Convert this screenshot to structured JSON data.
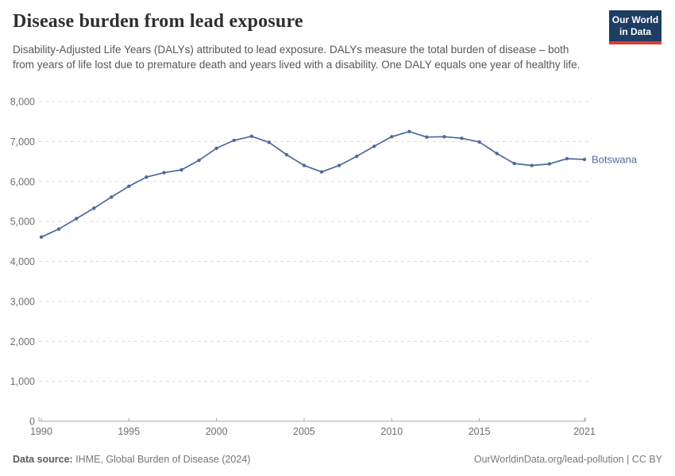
{
  "header": {
    "title": "Disease burden from lead exposure",
    "subtitle": "Disability-Adjusted Life Years (DALYs) attributed to lead exposure. DALYs measure the total burden of disease – both from years of life lost due to premature death and years lived with a disability. One DALY equals one year of healthy life.",
    "logo": {
      "line1": "Our World",
      "line2": "in Data",
      "bg_color": "#1d3d63",
      "accent_color": "#dc3e32"
    }
  },
  "chart_data": {
    "type": "line",
    "title": "Disease burden from lead exposure",
    "xlabel": "",
    "ylabel": "",
    "x": [
      1990,
      1991,
      1992,
      1993,
      1994,
      1995,
      1996,
      1997,
      1998,
      1999,
      2000,
      2001,
      2002,
      2003,
      2004,
      2005,
      2006,
      2007,
      2008,
      2009,
      2010,
      2011,
      2012,
      2013,
      2014,
      2015,
      2016,
      2017,
      2018,
      2019,
      2020,
      2021
    ],
    "series": [
      {
        "name": "Botswana",
        "color": "#4c6a9c",
        "values": [
          4610,
          4810,
          5070,
          5330,
          5610,
          5880,
          6110,
          6220,
          6290,
          6530,
          6830,
          7030,
          7130,
          6980,
          6670,
          6400,
          6240,
          6400,
          6630,
          6880,
          7120,
          7250,
          7110,
          7120,
          7080,
          6990,
          6700,
          6450,
          6400,
          6440,
          6570,
          6550
        ]
      }
    ],
    "x_ticks": [
      1990,
      1995,
      2000,
      2005,
      2010,
      2015,
      2021
    ],
    "y_ticks": [
      0,
      1000,
      2000,
      3000,
      4000,
      5000,
      6000,
      7000,
      8000
    ],
    "xlim": [
      1990,
      2021
    ],
    "ylim": [
      0,
      8000
    ],
    "grid": true,
    "grid_style": "dashed",
    "legend_position": "line-end-label",
    "end_label": "Botswana",
    "colors": {
      "line": "#4c6a9c",
      "grid": "#dcdcdc",
      "axis": "#a8a8a8",
      "tick_text": "#6e6e6e"
    }
  },
  "footer": {
    "source_label": "Data source:",
    "source_value": " IHME, Global Burden of Disease (2024)",
    "right_text": "OurWorldinData.org/lead-pollution | CC BY"
  }
}
